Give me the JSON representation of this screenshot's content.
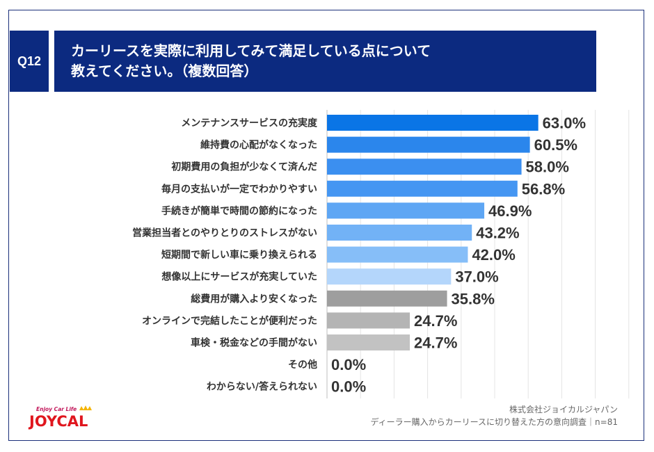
{
  "header": {
    "q_label": "Q12",
    "title_line1": "カーリースを実際に利用してみて満足している点について",
    "title_line2": "教えてください。（複数回答）"
  },
  "chart_data": {
    "type": "bar",
    "orientation": "horizontal",
    "categories": [
      "メンテナンスサービスの充実度",
      "維持費の心配がなくなった",
      "初期費用の負担が少なくて済んだ",
      "毎月の支払いが一定でわかりやすい",
      "手続きが簡単で時間の節約になった",
      "営業担当者とのやりとりのストレスがない",
      "短期間で新しい車に乗り換えられる",
      "想像以上にサービスが充実していた",
      "総費用が購入より安くなった",
      "オンラインで完結したことが便利だった",
      "車検・税金などの手間がない",
      "その他",
      "わからない/答えられない"
    ],
    "values": [
      63.0,
      60.5,
      58.0,
      56.8,
      46.9,
      43.2,
      42.0,
      37.0,
      35.8,
      24.7,
      24.7,
      0.0,
      0.0
    ],
    "value_labels": [
      "63.0%",
      "60.5%",
      "58.0%",
      "56.8%",
      "46.9%",
      "43.2%",
      "42.0%",
      "37.0%",
      "35.8%",
      "24.7%",
      "24.7%",
      "0.0%",
      "0.0%"
    ],
    "colors": [
      "#0a75e6",
      "#2b86ec",
      "#3b8ff0",
      "#4596f2",
      "#5ea6f4",
      "#72b2f6",
      "#86bef8",
      "#b4d6fb",
      "#9e9e9e",
      "#b4b4b4",
      "#c2c2c2",
      "#c2c2c2",
      "#c2c2c2"
    ],
    "xlim": [
      0,
      100
    ],
    "grid": true,
    "title": "",
    "xlabel": "",
    "ylabel": ""
  },
  "footer": {
    "company": "株式会社ジョイカルジャパン",
    "survey": "ディーラー購入からカーリースに切り替えた方の意向調査｜n=81"
  },
  "logo": {
    "tagline": "Enjoy Car Life",
    "brand": "JOYCAL"
  }
}
